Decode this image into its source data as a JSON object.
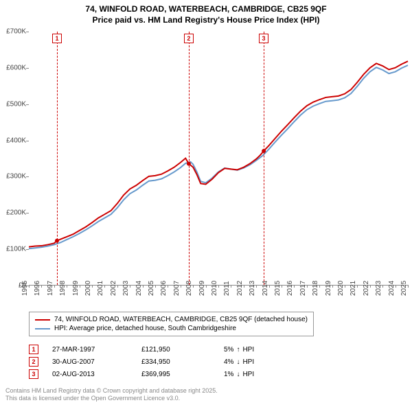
{
  "title": {
    "line1": "74, WINFOLD ROAD, WATERBEACH, CAMBRIDGE, CB25 9QF",
    "line2": "Price paid vs. HM Land Registry's House Price Index (HPI)"
  },
  "chart": {
    "type": "line",
    "background_color": "#ffffff",
    "border_color": "#888888",
    "text_color": "#444444",
    "ylim": [
      0,
      700000
    ],
    "ytick_step": 100000,
    "yticks": [
      {
        "v": 0,
        "label": "£0"
      },
      {
        "v": 100000,
        "label": "£100K"
      },
      {
        "v": 200000,
        "label": "£200K"
      },
      {
        "v": 300000,
        "label": "£300K"
      },
      {
        "v": 400000,
        "label": "£400K"
      },
      {
        "v": 500000,
        "label": "£500K"
      },
      {
        "v": 600000,
        "label": "£600K"
      },
      {
        "v": 700000,
        "label": "£700K"
      }
    ],
    "xlim": [
      1995,
      2025
    ],
    "xticks": [
      1995,
      1996,
      1997,
      1998,
      1999,
      2000,
      2001,
      2002,
      2003,
      2004,
      2005,
      2006,
      2007,
      2008,
      2009,
      2010,
      2011,
      2012,
      2013,
      2014,
      2015,
      2016,
      2017,
      2018,
      2019,
      2020,
      2021,
      2022,
      2023,
      2024,
      2025
    ],
    "series": [
      {
        "name": "74, WINFOLD ROAD, WATERBEACH, CAMBRIDGE, CB25 9QF (detached house)",
        "color": "#cc0000",
        "line_width": 2,
        "data": [
          [
            1995.0,
            105000
          ],
          [
            1995.5,
            107000
          ],
          [
            1996.0,
            108000
          ],
          [
            1996.5,
            111000
          ],
          [
            1997.0,
            115000
          ],
          [
            1997.23,
            121950
          ],
          [
            1997.5,
            126000
          ],
          [
            1998.0,
            133000
          ],
          [
            1998.5,
            140000
          ],
          [
            1999.0,
            150000
          ],
          [
            1999.5,
            160000
          ],
          [
            2000.0,
            172000
          ],
          [
            2000.5,
            185000
          ],
          [
            2001.0,
            195000
          ],
          [
            2001.5,
            205000
          ],
          [
            2002.0,
            225000
          ],
          [
            2002.5,
            248000
          ],
          [
            2003.0,
            265000
          ],
          [
            2003.5,
            275000
          ],
          [
            2004.0,
            288000
          ],
          [
            2004.5,
            300000
          ],
          [
            2005.0,
            302000
          ],
          [
            2005.5,
            306000
          ],
          [
            2006.0,
            315000
          ],
          [
            2006.5,
            325000
          ],
          [
            2007.0,
            338000
          ],
          [
            2007.4,
            350000
          ],
          [
            2007.66,
            334950
          ],
          [
            2008.0,
            325000
          ],
          [
            2008.3,
            305000
          ],
          [
            2008.6,
            280000
          ],
          [
            2009.0,
            278000
          ],
          [
            2009.5,
            292000
          ],
          [
            2010.0,
            310000
          ],
          [
            2010.5,
            322000
          ],
          [
            2011.0,
            320000
          ],
          [
            2011.5,
            318000
          ],
          [
            2012.0,
            325000
          ],
          [
            2012.5,
            335000
          ],
          [
            2013.0,
            348000
          ],
          [
            2013.3,
            358000
          ],
          [
            2013.59,
            369995
          ],
          [
            2014.0,
            385000
          ],
          [
            2014.5,
            405000
          ],
          [
            2015.0,
            425000
          ],
          [
            2015.5,
            443000
          ],
          [
            2016.0,
            462000
          ],
          [
            2016.5,
            480000
          ],
          [
            2017.0,
            495000
          ],
          [
            2017.5,
            505000
          ],
          [
            2018.0,
            512000
          ],
          [
            2018.5,
            518000
          ],
          [
            2019.0,
            520000
          ],
          [
            2019.5,
            522000
          ],
          [
            2020.0,
            528000
          ],
          [
            2020.5,
            540000
          ],
          [
            2021.0,
            560000
          ],
          [
            2021.5,
            582000
          ],
          [
            2022.0,
            600000
          ],
          [
            2022.5,
            612000
          ],
          [
            2023.0,
            605000
          ],
          [
            2023.5,
            595000
          ],
          [
            2024.0,
            600000
          ],
          [
            2024.5,
            610000
          ],
          [
            2025.0,
            618000
          ]
        ]
      },
      {
        "name": "HPI: Average price, detached house, South Cambridgeshire",
        "color": "#6699cc",
        "line_width": 2,
        "data": [
          [
            1995.0,
            100000
          ],
          [
            1995.5,
            102000
          ],
          [
            1996.0,
            104000
          ],
          [
            1996.5,
            107000
          ],
          [
            1997.0,
            111000
          ],
          [
            1997.5,
            117000
          ],
          [
            1998.0,
            125000
          ],
          [
            1998.5,
            133000
          ],
          [
            1999.0,
            142000
          ],
          [
            1999.5,
            152000
          ],
          [
            2000.0,
            163000
          ],
          [
            2000.5,
            175000
          ],
          [
            2001.0,
            185000
          ],
          [
            2001.5,
            195000
          ],
          [
            2002.0,
            213000
          ],
          [
            2002.5,
            235000
          ],
          [
            2003.0,
            252000
          ],
          [
            2003.5,
            262000
          ],
          [
            2004.0,
            275000
          ],
          [
            2004.5,
            287000
          ],
          [
            2005.0,
            289000
          ],
          [
            2005.5,
            293000
          ],
          [
            2006.0,
            302000
          ],
          [
            2006.5,
            312000
          ],
          [
            2007.0,
            324000
          ],
          [
            2007.4,
            336000
          ],
          [
            2007.8,
            340000
          ],
          [
            2008.0,
            333000
          ],
          [
            2008.3,
            312000
          ],
          [
            2008.6,
            286000
          ],
          [
            2009.0,
            282000
          ],
          [
            2009.5,
            295000
          ],
          [
            2010.0,
            312000
          ],
          [
            2010.5,
            323000
          ],
          [
            2011.0,
            320000
          ],
          [
            2011.5,
            317000
          ],
          [
            2012.0,
            323000
          ],
          [
            2012.5,
            332000
          ],
          [
            2013.0,
            344000
          ],
          [
            2013.5,
            357000
          ],
          [
            2014.0,
            375000
          ],
          [
            2014.5,
            395000
          ],
          [
            2015.0,
            414000
          ],
          [
            2015.5,
            432000
          ],
          [
            2016.0,
            451000
          ],
          [
            2016.5,
            469000
          ],
          [
            2017.0,
            484000
          ],
          [
            2017.5,
            494000
          ],
          [
            2018.0,
            501000
          ],
          [
            2018.5,
            507000
          ],
          [
            2019.0,
            509000
          ],
          [
            2019.5,
            511000
          ],
          [
            2020.0,
            517000
          ],
          [
            2020.5,
            529000
          ],
          [
            2021.0,
            549000
          ],
          [
            2021.5,
            571000
          ],
          [
            2022.0,
            589000
          ],
          [
            2022.5,
            601000
          ],
          [
            2023.0,
            594000
          ],
          [
            2023.5,
            584000
          ],
          [
            2024.0,
            589000
          ],
          [
            2024.5,
            599000
          ],
          [
            2025.0,
            607000
          ]
        ]
      }
    ],
    "markers": [
      {
        "idx": "1",
        "x": 1997.23,
        "y_top": 0,
        "color": "#cc0000"
      },
      {
        "idx": "2",
        "x": 2007.66,
        "y_top": 0,
        "color": "#cc0000"
      },
      {
        "idx": "3",
        "x": 2013.59,
        "y_top": 0,
        "color": "#cc0000"
      }
    ],
    "sale_points": [
      {
        "x": 1997.23,
        "y": 121950
      },
      {
        "x": 2007.66,
        "y": 334950
      },
      {
        "x": 2013.59,
        "y": 369995
      }
    ],
    "sale_point_color": "#cc0000",
    "sale_point_radius": 3
  },
  "legend": {
    "items": [
      {
        "color": "#cc0000",
        "label": "74, WINFOLD ROAD, WATERBEACH, CAMBRIDGE, CB25 9QF (detached house)"
      },
      {
        "color": "#6699cc",
        "label": "HPI: Average price, detached house, South Cambridgeshire"
      }
    ]
  },
  "events": [
    {
      "idx": "1",
      "date": "27-MAR-1997",
      "price": "£121,950",
      "pct": "5%",
      "dir": "↑",
      "suffix": "HPI",
      "color": "#cc0000"
    },
    {
      "idx": "2",
      "date": "30-AUG-2007",
      "price": "£334,950",
      "pct": "4%",
      "dir": "↓",
      "suffix": "HPI",
      "color": "#cc0000"
    },
    {
      "idx": "3",
      "date": "02-AUG-2013",
      "price": "£369,995",
      "pct": "1%",
      "dir": "↓",
      "suffix": "HPI",
      "color": "#cc0000"
    }
  ],
  "footer": {
    "line1": "Contains HM Land Registry data © Crown copyright and database right 2025.",
    "line2": "This data is licensed under the Open Government Licence v3.0."
  }
}
